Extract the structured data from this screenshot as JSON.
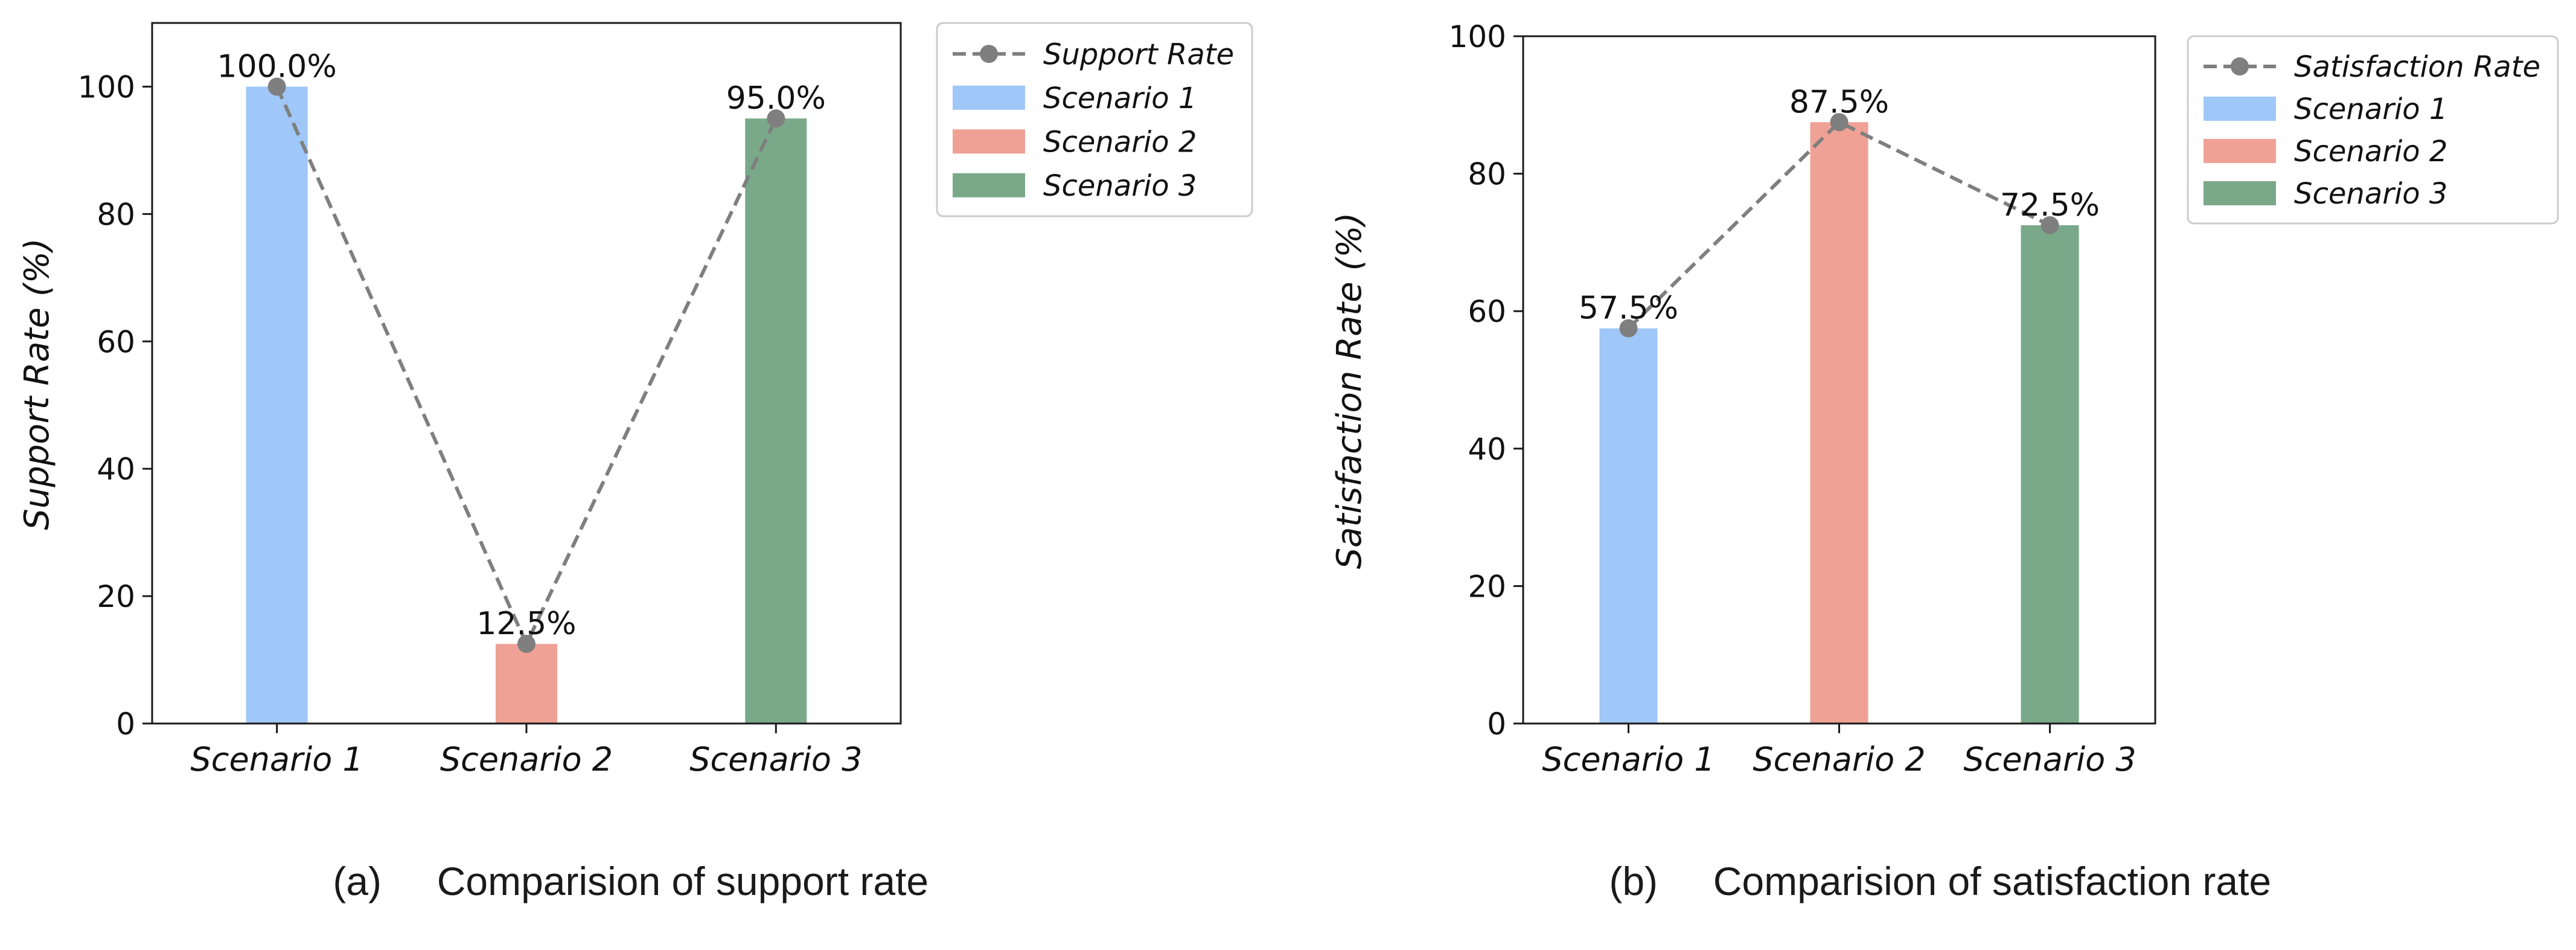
{
  "figure": {
    "captions": [
      {
        "label": "(a)",
        "text": "Comparision of support rate"
      },
      {
        "label": "(b)",
        "text": "Comparision of satisfaction rate"
      }
    ]
  },
  "colors": {
    "scenario_1": "#9fc7f7",
    "scenario_2": "#f0a195",
    "scenario_3": "#7aa98a",
    "line": "#7f7f7f"
  },
  "chart_data": [
    {
      "type": "bar",
      "title": "",
      "xlabel": "",
      "ylabel": "Support Rate (%)",
      "ylim": [
        0,
        110
      ],
      "yticks": [
        0,
        20,
        40,
        60,
        80,
        100
      ],
      "categories": [
        "Scenario 1",
        "Scenario 2",
        "Scenario 3"
      ],
      "values": [
        100.0,
        12.5,
        95.0
      ],
      "data_labels": [
        "100.0%",
        "12.5%",
        "95.0%"
      ],
      "line_series": {
        "name": "Support Rate",
        "values": [
          100.0,
          12.5,
          95.0
        ],
        "style": "dashed",
        "marker": "circle"
      },
      "legend": {
        "placement": "outside-top-right",
        "entries": [
          "Support Rate",
          "Scenario 1",
          "Scenario 2",
          "Scenario 3"
        ]
      },
      "grid": false
    },
    {
      "type": "bar",
      "title": "",
      "xlabel": "",
      "ylabel": "Satisfaction Rate (%)",
      "ylim": [
        0,
        100
      ],
      "yticks": [
        0,
        20,
        40,
        60,
        80,
        100
      ],
      "categories": [
        "Scenario 1",
        "Scenario 2",
        "Scenario 3"
      ],
      "values": [
        57.5,
        87.5,
        72.5
      ],
      "data_labels": [
        "57.5%",
        "87.5%",
        "72.5%"
      ],
      "line_series": {
        "name": "Satisfaction Rate",
        "values": [
          57.5,
          87.5,
          72.5
        ],
        "style": "dashed",
        "marker": "circle"
      },
      "legend": {
        "placement": "outside-top-right",
        "entries": [
          "Satisfaction Rate",
          "Scenario 1",
          "Scenario 2",
          "Scenario 3"
        ]
      },
      "grid": false
    }
  ]
}
